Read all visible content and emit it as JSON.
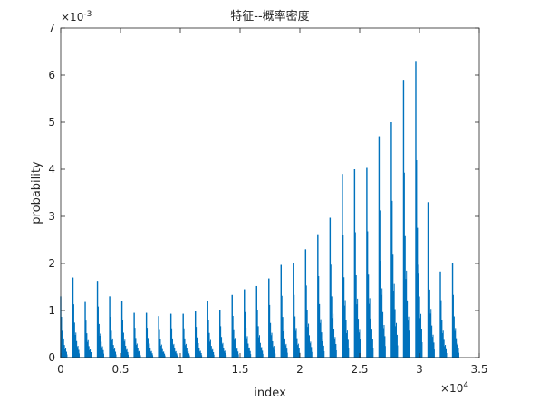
{
  "chart_data": {
    "type": "line",
    "title": "特征--概率密度",
    "xlabel": "index",
    "ylabel": "probability",
    "xlim": [
      0,
      35000
    ],
    "ylim": [
      0,
      0.007
    ],
    "x_exponent_label": "×10",
    "x_exponent": "4",
    "y_exponent_label": "×10",
    "y_exponent": "-3",
    "x_tick_labels": [
      "0",
      "0.5",
      "1",
      "1.5",
      "2",
      "2.5",
      "3",
      "3.5"
    ],
    "x_tick_values": [
      0,
      5000,
      10000,
      15000,
      20000,
      25000,
      30000,
      35000
    ],
    "y_tick_labels": [
      "0",
      "1",
      "2",
      "3",
      "4",
      "5",
      "6",
      "7"
    ],
    "y_tick_values": [
      0,
      0.001,
      0.002,
      0.003,
      0.004,
      0.005,
      0.006,
      0.007
    ],
    "grid": false,
    "line_color": "#0072bd",
    "series": [
      {
        "peaks": [
          {
            "x": 0,
            "y": 0.0013
          },
          {
            "x": 1024,
            "y": 0.0017
          },
          {
            "x": 2048,
            "y": 0.00118
          },
          {
            "x": 3072,
            "y": 0.00163
          },
          {
            "x": 4096,
            "y": 0.0013
          },
          {
            "x": 5120,
            "y": 0.00121
          },
          {
            "x": 6144,
            "y": 0.00095
          },
          {
            "x": 7168,
            "y": 0.00095
          },
          {
            "x": 8192,
            "y": 0.00088
          },
          {
            "x": 9216,
            "y": 0.00093
          },
          {
            "x": 10240,
            "y": 0.00093
          },
          {
            "x": 11264,
            "y": 0.00098
          },
          {
            "x": 12288,
            "y": 0.0012
          },
          {
            "x": 13312,
            "y": 0.001
          },
          {
            "x": 14336,
            "y": 0.00133
          },
          {
            "x": 15360,
            "y": 0.00145
          },
          {
            "x": 16384,
            "y": 0.00152
          },
          {
            "x": 17408,
            "y": 0.00168
          },
          {
            "x": 18432,
            "y": 0.00197
          },
          {
            "x": 19456,
            "y": 0.002
          },
          {
            "x": 20480,
            "y": 0.0023
          },
          {
            "x": 21504,
            "y": 0.0026
          },
          {
            "x": 22528,
            "y": 0.00297
          },
          {
            "x": 23552,
            "y": 0.0039
          },
          {
            "x": 24576,
            "y": 0.004
          },
          {
            "x": 25600,
            "y": 0.00403
          },
          {
            "x": 26624,
            "y": 0.0047
          },
          {
            "x": 27648,
            "y": 0.005
          },
          {
            "x": 28672,
            "y": 0.0059
          },
          {
            "x": 29696,
            "y": 0.0063
          },
          {
            "x": 30720,
            "y": 0.0033
          },
          {
            "x": 31744,
            "y": 0.00183
          },
          {
            "x": 32768,
            "y": 0.002
          }
        ]
      }
    ]
  }
}
